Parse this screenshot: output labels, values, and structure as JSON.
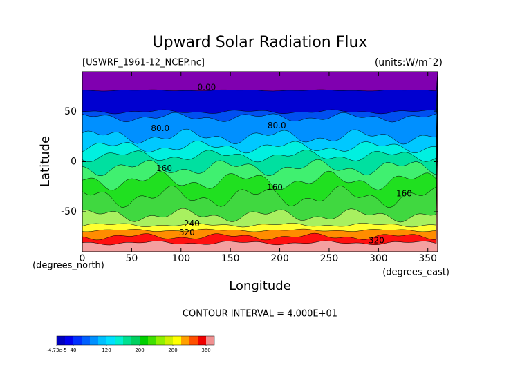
{
  "chart_data": {
    "type": "contour",
    "title": "Upward Solar Radiation Flux",
    "file_label": "[USWRF_1961-12_NCEP.nc]",
    "units_label": "(units:W/m¯2)",
    "x_label": "Longitude",
    "y_label": "Latitude",
    "x_unit_label": "(degrees_east)",
    "y_unit_label": "(degrees_north)",
    "note": "CONTOUR INTERVAL = 4.000E+01",
    "xlim": [
      0,
      360
    ],
    "ylim": [
      -90,
      90
    ],
    "xticks": [
      0,
      50,
      100,
      150,
      200,
      250,
      300,
      350
    ],
    "yticks": [
      -50,
      0,
      50
    ],
    "contour_labels": [
      "0.00",
      "80.0",
      "80.0",
      "160",
      "160",
      "160",
      "240",
      "320",
      "320"
    ],
    "colorbar": {
      "lim": [
        -4.73e-05,
        380
      ],
      "ticks": [
        {
          "value": -4.73e-05,
          "label": "-4.73e-5"
        },
        40,
        120,
        200,
        280,
        360
      ],
      "colors": [
        "#0000c0",
        "#0000f0",
        "#0030ff",
        "#0060ff",
        "#0090ff",
        "#00c0ff",
        "#00e0ff",
        "#00f0d0",
        "#00e090",
        "#00d060",
        "#00d000",
        "#40e000",
        "#90f000",
        "#d0f000",
        "#ffff00",
        "#ffa000",
        "#ff5000",
        "#f00000",
        "#f09090"
      ]
    }
  }
}
